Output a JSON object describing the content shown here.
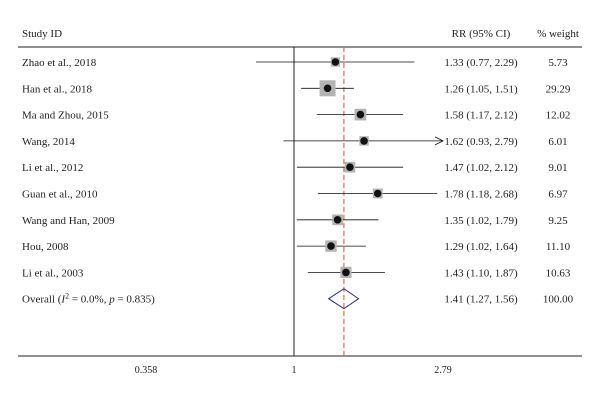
{
  "chart_data": {
    "type": "forest",
    "columns": {
      "study": "Study ID",
      "estimate": "RR (95% CI)",
      "weight": "% weight"
    },
    "x_scale": "log",
    "x_ticks": [
      0.358,
      1,
      2.79
    ],
    "x_tick_labels": [
      "0.358",
      "1",
      "2.79"
    ],
    "xlim": [
      0.358,
      2.79
    ],
    "reference_line": 1,
    "overall_line": 1.41,
    "studies": [
      {
        "label": "Zhao et al., 2018",
        "rr": 1.33,
        "lo": 0.77,
        "hi": 2.29,
        "ci_text": "1.33 (0.77, 2.29)",
        "weight": 5.73,
        "weight_text": "5.73"
      },
      {
        "label": "Han et al., 2018",
        "rr": 1.26,
        "lo": 1.05,
        "hi": 1.51,
        "ci_text": "1.26 (1.05, 1.51)",
        "weight": 29.29,
        "weight_text": "29.29"
      },
      {
        "label": "Ma and Zhou, 2015",
        "rr": 1.58,
        "lo": 1.17,
        "hi": 2.12,
        "ci_text": "1.58 (1.17, 2.12)",
        "weight": 12.02,
        "weight_text": "12.02"
      },
      {
        "label": "Wang, 2014",
        "rr": 1.62,
        "lo": 0.93,
        "hi": 2.79,
        "ci_text": "1.62 (0.93, 2.79)",
        "weight": 6.01,
        "weight_text": "6.01",
        "arrow_right": true
      },
      {
        "label": "Li et al., 2012",
        "rr": 1.47,
        "lo": 1.02,
        "hi": 2.12,
        "ci_text": "1.47 (1.02, 2.12)",
        "weight": 9.01,
        "weight_text": "9.01"
      },
      {
        "label": "Guan et al., 2010",
        "rr": 1.78,
        "lo": 1.18,
        "hi": 2.68,
        "ci_text": "1.78 (1.18, 2.68)",
        "weight": 6.97,
        "weight_text": "6.97"
      },
      {
        "label": "Wang and Han, 2009",
        "rr": 1.35,
        "lo": 1.02,
        "hi": 1.79,
        "ci_text": "1.35 (1.02, 1.79)",
        "weight": 9.25,
        "weight_text": "9.25"
      },
      {
        "label": "Hou, 2008",
        "rr": 1.29,
        "lo": 1.02,
        "hi": 1.64,
        "ci_text": "1.29 (1.02, 1.64)",
        "weight": 11.1,
        "weight_text": "11.10"
      },
      {
        "label": "Li et al., 2003",
        "rr": 1.43,
        "lo": 1.1,
        "hi": 1.87,
        "ci_text": "1.43 (1.10, 1.87)",
        "weight": 10.63,
        "weight_text": "10.63"
      }
    ],
    "overall": {
      "label_prefix": "Overall (",
      "label_i": "I",
      "label_sup": "2",
      "label_mid": " = 0.0%, ",
      "label_p": "p",
      "label_end": " = 0.835)",
      "rr": 1.41,
      "lo": 1.27,
      "hi": 1.56,
      "ci_text": "1.41 (1.27, 1.56)",
      "weight": 100.0,
      "weight_text": "100.00"
    },
    "colors": {
      "marker": "#111111",
      "weight_box": "#b3b3b3",
      "diamond": "#2b2f7a",
      "overall_line": "#e0703a",
      "axis": "#222222"
    }
  }
}
